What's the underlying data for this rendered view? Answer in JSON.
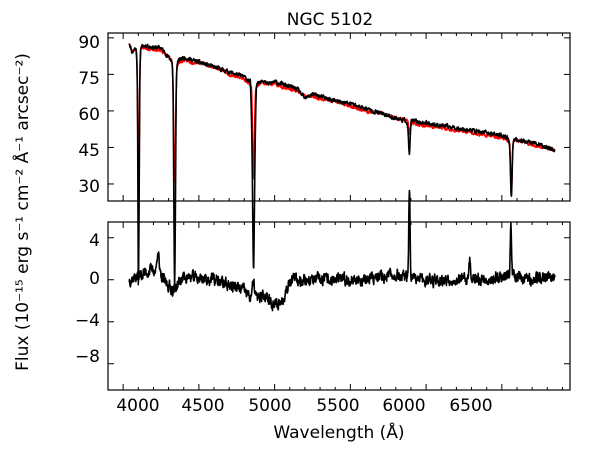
{
  "chart_data": [
    {
      "type": "line",
      "title": "NGC 5102",
      "xlabel": "",
      "ylabel": "",
      "xlim": [
        3900,
        6950
      ],
      "ylim": [
        23,
        92
      ],
      "yticks": [
        30,
        45,
        60,
        75,
        90
      ],
      "xticks": [
        4000,
        4500,
        5000,
        5500,
        6000,
        6500
      ],
      "grid": false,
      "series": [
        {
          "color": "#000000",
          "anchors": [
            [
              4040,
              88
            ],
            [
              4060,
              84
            ],
            [
              4080,
              86
            ],
            [
              4095,
              83
            ],
            [
              4100,
              37
            ],
            [
              4110,
              86
            ],
            [
              4150,
              87
            ],
            [
              4200,
              86
            ],
            [
              4250,
              86
            ],
            [
              4300,
              82
            ],
            [
              4330,
              80
            ],
            [
              4340,
              36
            ],
            [
              4350,
              80
            ],
            [
              4400,
              82
            ],
            [
              4450,
              81
            ],
            [
              4500,
              80
            ],
            [
              4550,
              79
            ],
            [
              4600,
              78
            ],
            [
              4650,
              77
            ],
            [
              4700,
              76
            ],
            [
              4750,
              75
            ],
            [
              4800,
              74
            ],
            [
              4840,
              72
            ],
            [
              4861,
              35
            ],
            [
              4880,
              71
            ],
            [
              4920,
              73
            ],
            [
              4950,
              71
            ],
            [
              5000,
              72
            ],
            [
              5050,
              71
            ],
            [
              5100,
              70
            ],
            [
              5150,
              69
            ],
            [
              5200,
              65
            ],
            [
              5250,
              67
            ],
            [
              5300,
              66
            ],
            [
              5400,
              64
            ],
            [
              5500,
              63
            ],
            [
              5600,
              61
            ],
            [
              5700,
              59
            ],
            [
              5800,
              57
            ],
            [
              5870,
              56
            ],
            [
              5890,
              50
            ],
            [
              5900,
              56
            ],
            [
              6000,
              55
            ],
            [
              6100,
              54
            ],
            [
              6200,
              53
            ],
            [
              6300,
              52
            ],
            [
              6400,
              51
            ],
            [
              6500,
              50
            ],
            [
              6540,
              49
            ],
            [
              6560,
              44
            ],
            [
              6580,
              49
            ],
            [
              6600,
              48
            ],
            [
              6700,
              47
            ],
            [
              6800,
              45
            ],
            [
              6850,
              44
            ]
          ],
          "dips": [
            [
              4102,
              53,
              5
            ],
            [
              4340,
              50,
              6
            ],
            [
              4861,
              42,
              6
            ],
            [
              5890,
              8,
              5
            ],
            [
              6563,
              20,
              5
            ]
          ],
          "noise": 1.3,
          "seed": 11
        },
        {
          "color": "#ff0000",
          "anchors": [
            [
              4040,
              88
            ],
            [
              4060,
              84
            ],
            [
              4080,
              86
            ],
            [
              4095,
              83
            ],
            [
              4110,
              86
            ],
            [
              4150,
              86
            ],
            [
              4200,
              85
            ],
            [
              4250,
              85
            ],
            [
              4300,
              82
            ],
            [
              4330,
              80
            ],
            [
              4350,
              79
            ],
            [
              4400,
              81
            ],
            [
              4450,
              80
            ],
            [
              4500,
              80
            ],
            [
              4550,
              79
            ],
            [
              4600,
              78
            ],
            [
              4650,
              77
            ],
            [
              4700,
              75
            ],
            [
              4750,
              74
            ],
            [
              4800,
              73
            ],
            [
              4840,
              71
            ],
            [
              4880,
              70
            ],
            [
              4920,
              72
            ],
            [
              4950,
              71
            ],
            [
              5000,
              71
            ],
            [
              5050,
              70
            ],
            [
              5100,
              69
            ],
            [
              5150,
              68
            ],
            [
              5200,
              66
            ],
            [
              5250,
              66
            ],
            [
              5300,
              65
            ],
            [
              5400,
              64
            ],
            [
              5500,
              62
            ],
            [
              5600,
              60
            ],
            [
              5700,
              59
            ],
            [
              5800,
              57
            ],
            [
              5870,
              56
            ],
            [
              5900,
              55
            ],
            [
              6000,
              54
            ],
            [
              6100,
              53
            ],
            [
              6200,
              52
            ],
            [
              6300,
              51
            ],
            [
              6400,
              50
            ],
            [
              6500,
              49
            ],
            [
              6540,
              48
            ],
            [
              6580,
              48
            ],
            [
              6600,
              48
            ],
            [
              6700,
              46
            ],
            [
              6800,
              45
            ],
            [
              6850,
              44
            ]
          ],
          "dips": [
            [
              4102,
              52,
              5
            ],
            [
              4340,
              48,
              6
            ],
            [
              4861,
              38,
              6
            ],
            [
              5890,
              5,
              5
            ],
            [
              6563,
              22,
              5
            ]
          ],
          "noise": 1.1,
          "seed": 23
        }
      ]
    },
    {
      "type": "line",
      "title": "",
      "xlabel": "Wavelength (Å)",
      "ylabel": "",
      "xlim": [
        3900,
        6950
      ],
      "ylim": [
        -10.5,
        5.5
      ],
      "yticks": [
        -8,
        -4,
        0,
        4
      ],
      "xticks": [
        4000,
        4500,
        5000,
        5500,
        6000,
        6500
      ],
      "grid": false,
      "series": [
        {
          "color": "#000000",
          "anchors": [
            [
              4040,
              0
            ],
            [
              4200,
              1
            ],
            [
              4330,
              -1
            ],
            [
              4400,
              0.3
            ],
            [
              4600,
              0
            ],
            [
              4800,
              -1
            ],
            [
              4850,
              -2
            ],
            [
              4950,
              -1.5
            ],
            [
              5000,
              -2.5
            ],
            [
              5050,
              -2
            ],
            [
              5100,
              0
            ],
            [
              5300,
              0
            ],
            [
              5600,
              0
            ],
            [
              5800,
              0.5
            ],
            [
              5900,
              0
            ],
            [
              6200,
              0
            ],
            [
              6400,
              0
            ],
            [
              6560,
              0.5
            ],
            [
              6700,
              0
            ],
            [
              6850,
              0.5
            ]
          ],
          "dips": [
            [
              4860,
              -1.5,
              10
            ],
            [
              5890,
              -9,
              4
            ],
            [
              6290,
              -2,
              5
            ]
          ],
          "spikes": [
            [
              4230,
              2.5,
              6
            ],
            [
              6560,
              4.5,
              4
            ]
          ],
          "noise": 0.9,
          "seed": 37
        }
      ]
    }
  ],
  "shared_ylabel": "Flux (10⁻¹⁵ erg s⁻¹ cm⁻² Å⁻¹ arcsec⁻²)",
  "tick_text": {
    "top_y": [
      "30",
      "45",
      "60",
      "75",
      "90"
    ],
    "bottom_y": [
      "−8",
      "−4",
      "0",
      "4"
    ],
    "bottom_x": [
      "4000",
      "4500",
      "5000",
      "5500",
      "6000",
      "6500"
    ]
  }
}
